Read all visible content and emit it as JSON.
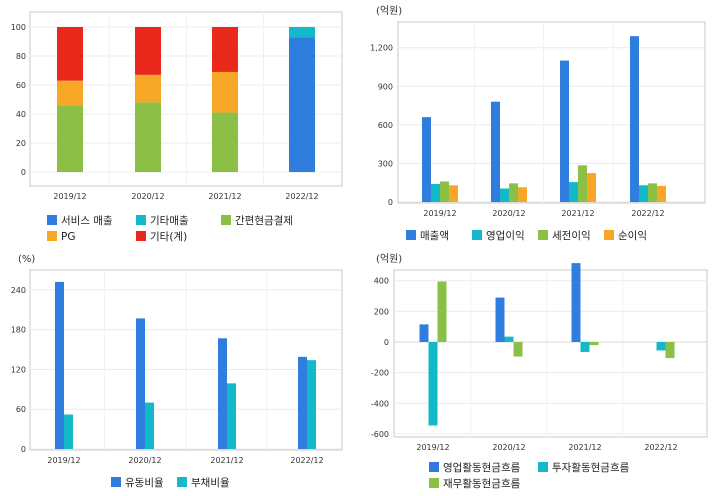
{
  "colors": {
    "blue": "#2f7ddf",
    "cyan": "#13b8c9",
    "green": "#8cbf45",
    "orange": "#f7a726",
    "red": "#e8291c"
  },
  "chart_data": [
    {
      "type": "bar",
      "stacked": true,
      "unit": "",
      "categories": [
        "2019/12",
        "2020/12",
        "2021/12",
        "2022/12"
      ],
      "ylim": [
        0,
        100
      ],
      "yticks": [
        "0",
        "20",
        "40",
        "60",
        "80",
        "100"
      ],
      "series": [
        {
          "name": "서비스 매출",
          "color": "blue",
          "values": [
            0,
            0,
            0,
            93
          ]
        },
        {
          "name": "기타매출",
          "color": "cyan",
          "values": [
            0,
            0,
            0,
            7
          ]
        },
        {
          "name": "간편현금결제",
          "color": "green",
          "values": [
            46,
            48,
            41,
            0
          ]
        },
        {
          "name": "PG",
          "color": "orange",
          "values": [
            17,
            19,
            28,
            0
          ]
        },
        {
          "name": "기타(계)",
          "color": "red",
          "values": [
            37,
            33,
            31,
            0
          ]
        }
      ]
    },
    {
      "type": "bar",
      "stacked": false,
      "unit": "(억원)",
      "categories": [
        "2019/12",
        "2020/12",
        "2021/12",
        "2022/12"
      ],
      "ylim": [
        0,
        1400
      ],
      "yticks": [
        "0",
        "300",
        "600",
        "900",
        "1,200"
      ],
      "series": [
        {
          "name": "매출액",
          "color": "blue",
          "values": [
            660,
            780,
            1100,
            1290
          ]
        },
        {
          "name": "영업이익",
          "color": "cyan",
          "values": [
            140,
            105,
            155,
            130
          ]
        },
        {
          "name": "세전이익",
          "color": "green",
          "values": [
            160,
            145,
            285,
            145
          ]
        },
        {
          "name": "순이익",
          "color": "orange",
          "values": [
            130,
            115,
            225,
            125
          ]
        }
      ]
    },
    {
      "type": "bar",
      "stacked": false,
      "unit": "(%)",
      "categories": [
        "2019/12",
        "2020/12",
        "2021/12",
        "2022/12"
      ],
      "ylim": [
        0,
        270
      ],
      "yticks": [
        "0",
        "60",
        "120",
        "180",
        "240"
      ],
      "series": [
        {
          "name": "유동비율",
          "color": "blue",
          "values": [
            252,
            197,
            167,
            139
          ]
        },
        {
          "name": "부채비율",
          "color": "cyan",
          "values": [
            52,
            70,
            99,
            134
          ]
        }
      ]
    },
    {
      "type": "bar",
      "stacked": false,
      "unit": "(억원)",
      "categories": [
        "2019/12",
        "2020/12",
        "2021/12",
        "2022/12"
      ],
      "ylim": [
        -620,
        470
      ],
      "yticks": [
        "-600",
        "-400",
        "-200",
        "0",
        "200",
        "400"
      ],
      "series": [
        {
          "name": "영업활동현금흐름",
          "color": "blue",
          "values": [
            115,
            290,
            515,
            0
          ]
        },
        {
          "name": "투자활동현금흐름",
          "color": "cyan",
          "values": [
            -545,
            35,
            -65,
            -55
          ]
        },
        {
          "name": "재무활동현금흐름",
          "color": "green",
          "values": [
            395,
            -95,
            -20,
            -105
          ]
        }
      ]
    }
  ]
}
